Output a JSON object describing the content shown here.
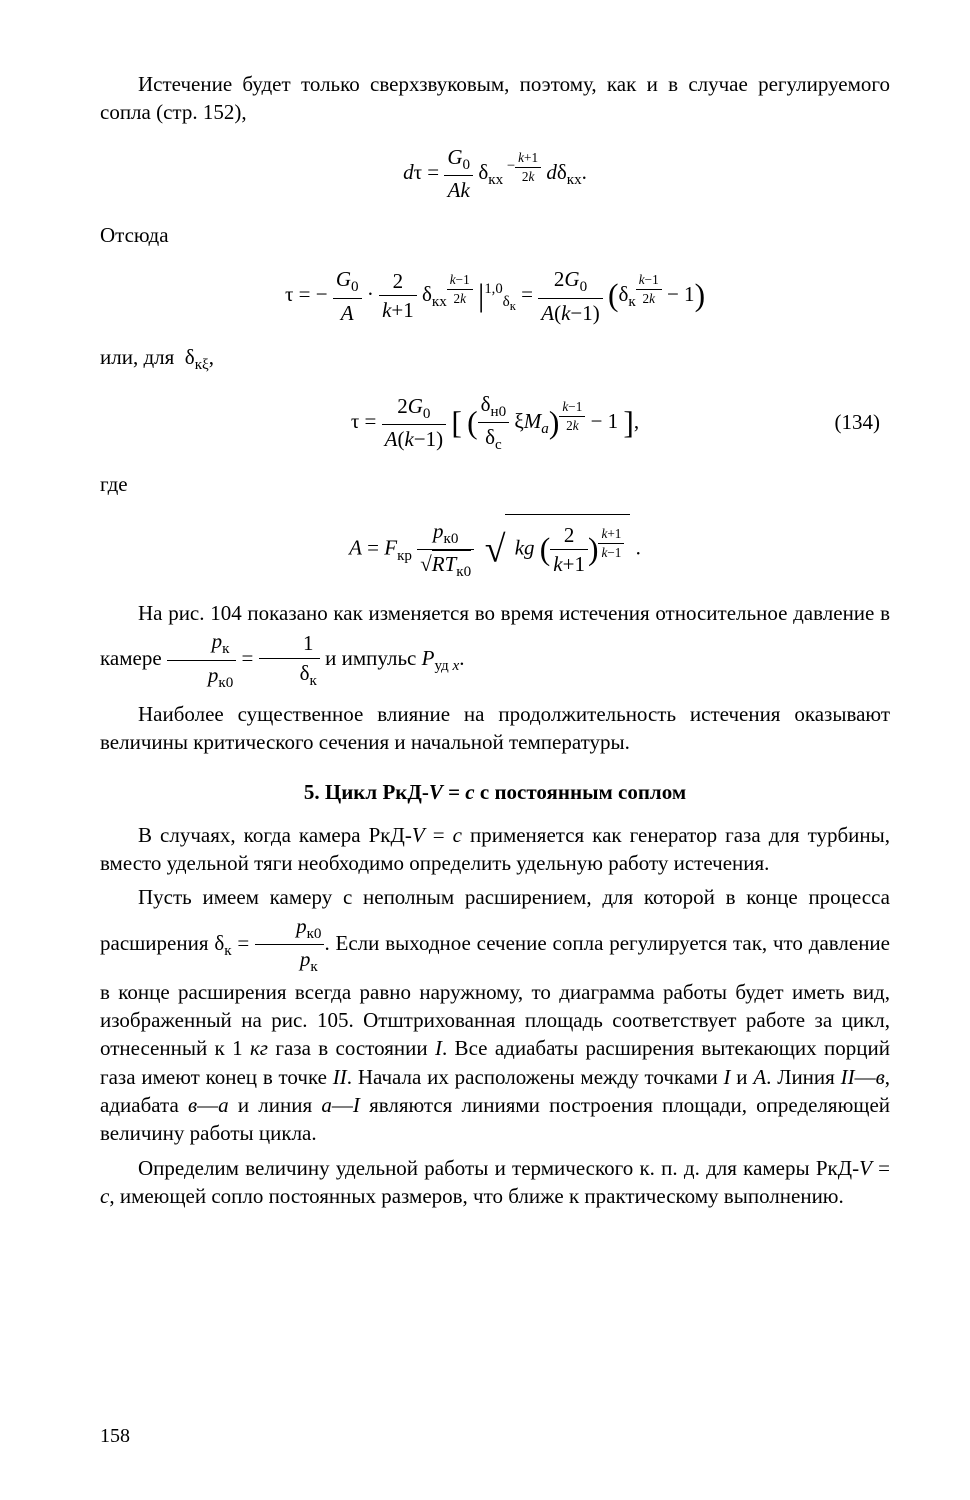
{
  "page_number": "158",
  "p1": "Истечение будет только сверхзвуковым, поэтому, как и в случае регулируемого сопла (стр. 152),",
  "eq1_html": "<i>d</i>&tau; = <span class='frac'><span class='fnum'><i>G</i><span class='sub'>0</span></span><span><i>Ak</i></span></span> &delta;<span class='sub'>кx</span><span class='sup'>&nbsp;&minus;<span class='frac' style='font-size:90%'><span class='fnum'><i>k</i>+1</span><span>2<i>k</i></span></span></span> <i>d</i>&delta;<span class='sub'>кx</span>.",
  "p2": "Отсюда",
  "eq2_html": "&tau; = &minus; <span class='frac'><span class='fnum'><i>G</i><span class='sub'>0</span></span><span><i>A</i></span></span> &middot; <span class='frac'><span class='fnum'>2</span><span><i>k</i>+1</span></span> &delta;<span class='sub'>кx</span><span class='sup'><span class='frac' style='font-size:90%'><span class='fnum'><i>k</i>&minus;1</span><span>2<i>k</i></span></span></span> <span class='big'>|</span><span class='sup'>1,0</span><span class='sub'>&delta;<sub>к</sub></span> = <span class='frac'><span class='fnum'>2<i>G</i><span class='sub'>0</span></span><span><i>A</i>(<i>k</i>&minus;1)</span></span> <span class='big'>(</span>&delta;<span class='sub'>к</span><span class='sup'><span class='frac' style='font-size:90%'><span class='fnum'><i>k</i>&minus;1</span><span>2<i>k</i></span></span></span> &minus; 1<span class='big'>)</span>",
  "p3": "или, для &nbsp;&delta;<span class='sub'>к&xi;</span>,",
  "eq3_html": "&tau; = <span class='frac'><span class='fnum'>2<i>G</i><span class='sub'>0</span></span><span><i>A</i>(<i>k</i>&minus;1)</span></span> <span class='big'>[</span> <span class='big'>(</span><span class='frac'><span class='fnum'>&delta;<span class='sub'>н0</span></span><span>&delta;<span class='sub'>c</span></span></span> &xi;<i>M</i><span class='sub'><i>a</i></span><span class='big'>)</span><span class='sup'><span class='frac' style='font-size:90%'><span class='fnum'><i>k</i>&minus;1</span><span>2<i>k</i></span></span></span> &minus; 1 <span class='big'>]</span>,",
  "eq3_num": "(134)",
  "p4": "где",
  "eq4_html": "<i>A</i> = <i>F</i><span class='sub'>кр</span> <span class='frac'><span class='fnum'><i>p</i><span class='sub'>к0</span></span><span>&radic;<span style='border-top:1.2px solid #000;padding-top:1px;'><i>RT</i><span class='sub'>к0</span></span></span></span> &nbsp;<span style='font-size:180%;vertical-align:middle;font-family:serif;'>&radic;</span><span style='border-top:1.2px solid #000;padding:6px 6px 0 4px;display:inline-block;'>&nbsp;<i>kg</i> <span class='big'>(</span><span class='frac'><span class='fnum'>2</span><span><i>k</i>+1</span></span><span class='big'>)</span><span class='sup'><span class='frac' style='font-size:90%'><span class='fnum'><i>k</i>+1</span><span><i>k</i>&minus;1</span></span></span></span> .",
  "p5_html": "На рис. 104 показано как изменяется во время истечения относительное давление в камере <span class='nowrap'><span class='frac'><span class='fnum'><i>p</i><span class='sub'>к</span></span><span><i>p</i><span class='sub'>к0</span></span></span> = <span class='frac'><span class='fnum'>1</span><span>&delta;<span class='sub'>к</span></span></span></span> и импульс <i>P</i><span class='sub'>уд <i>x</i></span>.",
  "p6": "Наиболее существенное влияние на продолжительность истечения оказывают величины критического сечения и начальной температуры.",
  "section_title_html": "5. Цикл РкД-<i>V</i> = <i>c</i> с постоянным соплом",
  "p7_html": "В случаях, когда камера РкД-<i>V</i> = <i>c</i> применяется как генератор газа для турбины, вместо удельной тяги необходимо определить удельную работу истечения.",
  "p8_html": "Пусть имеем камеру с неполным расширением, для которой в конце процесса расширения &delta;<span class='sub'>к</span> = <span class='frac'><span class='fnum'><i>p</i><span class='sub'>к0</span></span><span><i>p</i><span class='sub'>к</span></span></span>. Если выходное сечение сопла регулируется так, что давление в конце расширения всегда равно наружному, то диаграмма работы будет иметь вид, изображенный на рис. 105. Отштрихованная площадь соответствует работе за цикл, отнесенный к 1 <i>кг</i> газа в состоянии <i>I</i>. Все адиабаты расширения вытекающих порций газа имеют конец в точке <i>II</i>. Начала их расположены между точками <i>I</i> и <i>A</i>. Линия <i>II</i>&mdash;<i>в</i>, адиабата <i>в</i>&mdash;<i>а</i> и линия <i>а</i>&mdash;<i>I</i> являются линиями построения площади, определяющей величину работы цикла.",
  "p9_html": "Определим величину удельной работы и термического к. п. д. для камеры РкД-<i>V</i> = <i>c</i>, имеющей сопло постоянных размеров, что ближе к практическому выполнению."
}
